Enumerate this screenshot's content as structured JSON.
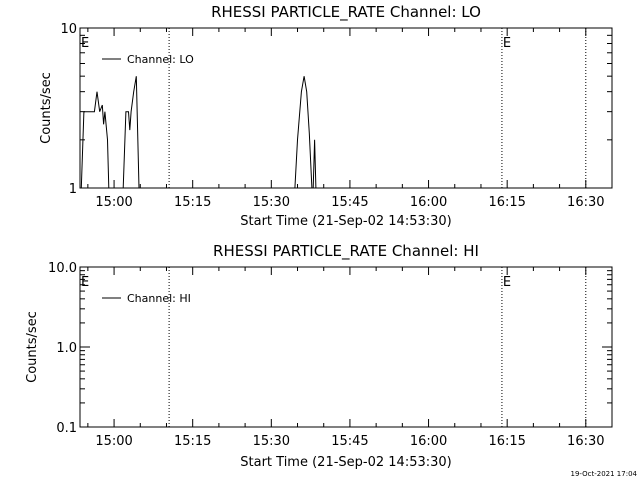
{
  "footer": {
    "timestamp": "19-Oct-2021 17:04"
  },
  "chart_data": [
    {
      "type": "line",
      "title": "RHESSI PARTICLE_RATE Channel: LO",
      "xlabel": "Start Time (21-Sep-02 14:53:30)",
      "ylabel": "Counts/sec",
      "y_scale": "log",
      "ylim": [
        1,
        10
      ],
      "y_ticks": [
        {
          "value": 1,
          "label": "1"
        },
        {
          "value": 10,
          "label": "10"
        }
      ],
      "xlim": [
        "14:53:30",
        "16:35:00"
      ],
      "x_ticks": [
        "15:00",
        "15:15",
        "15:30",
        "15:45",
        "16:00",
        "16:15",
        "16:30"
      ],
      "legend": {
        "position": "top-left",
        "entries": [
          "Channel: LO"
        ]
      },
      "vlines": [
        {
          "time": "14:53:30",
          "label": "E"
        },
        {
          "time": "15:10:30",
          "label": ""
        },
        {
          "time": "16:14:00",
          "label": "E"
        },
        {
          "time": "16:30:00",
          "label": ""
        }
      ],
      "series": [
        {
          "name": "Channel: LO",
          "segments": [
            [
              [
                "14:53:45",
                1
              ],
              [
                "14:54:15",
                3
              ],
              [
                "14:56:15",
                3
              ],
              [
                "14:56:45",
                4
              ],
              [
                "14:57:15",
                3
              ],
              [
                "14:57:45",
                3.3
              ],
              [
                "14:58:00",
                2.5
              ],
              [
                "14:58:15",
                3
              ],
              [
                "14:58:45",
                2
              ],
              [
                "14:59:00",
                1
              ]
            ],
            [
              [
                "15:01:45",
                1
              ],
              [
                "15:02:15",
                3
              ],
              [
                "15:02:45",
                3
              ],
              [
                "15:03:00",
                2.3
              ],
              [
                "15:03:15",
                3
              ],
              [
                "15:03:45",
                4
              ],
              [
                "15:04:15",
                5
              ],
              [
                "15:04:45",
                1
              ]
            ],
            [
              [
                "15:34:30",
                1
              ],
              [
                "15:35:00",
                2
              ],
              [
                "15:35:45",
                4
              ],
              [
                "15:36:15",
                5
              ],
              [
                "15:36:45",
                4
              ],
              [
                "15:37:15",
                2.2
              ],
              [
                "15:37:45",
                1
              ],
              [
                "15:38:00",
                1
              ],
              [
                "15:38:15",
                2
              ],
              [
                "15:38:30",
                1
              ]
            ]
          ]
        }
      ]
    },
    {
      "type": "line",
      "title": "RHESSI PARTICLE_RATE Channel: HI",
      "xlabel": "Start Time (21-Sep-02 14:53:30)",
      "ylabel": "Counts/sec",
      "y_scale": "log",
      "ylim": [
        0.1,
        10
      ],
      "y_ticks": [
        {
          "value": 0.1,
          "label": "0.1"
        },
        {
          "value": 1,
          "label": "1.0"
        },
        {
          "value": 10,
          "label": "10.0"
        }
      ],
      "xlim": [
        "14:53:30",
        "16:35:00"
      ],
      "x_ticks": [
        "15:00",
        "15:15",
        "15:30",
        "15:45",
        "16:00",
        "16:15",
        "16:30"
      ],
      "legend": {
        "position": "top-left",
        "entries": [
          "Channel: HI"
        ]
      },
      "vlines": [
        {
          "time": "14:53:30",
          "label": "E"
        },
        {
          "time": "15:10:30",
          "label": ""
        },
        {
          "time": "16:14:00",
          "label": "E"
        },
        {
          "time": "16:30:00",
          "label": ""
        }
      ],
      "series": [
        {
          "name": "Channel: HI",
          "segments": []
        }
      ]
    }
  ]
}
